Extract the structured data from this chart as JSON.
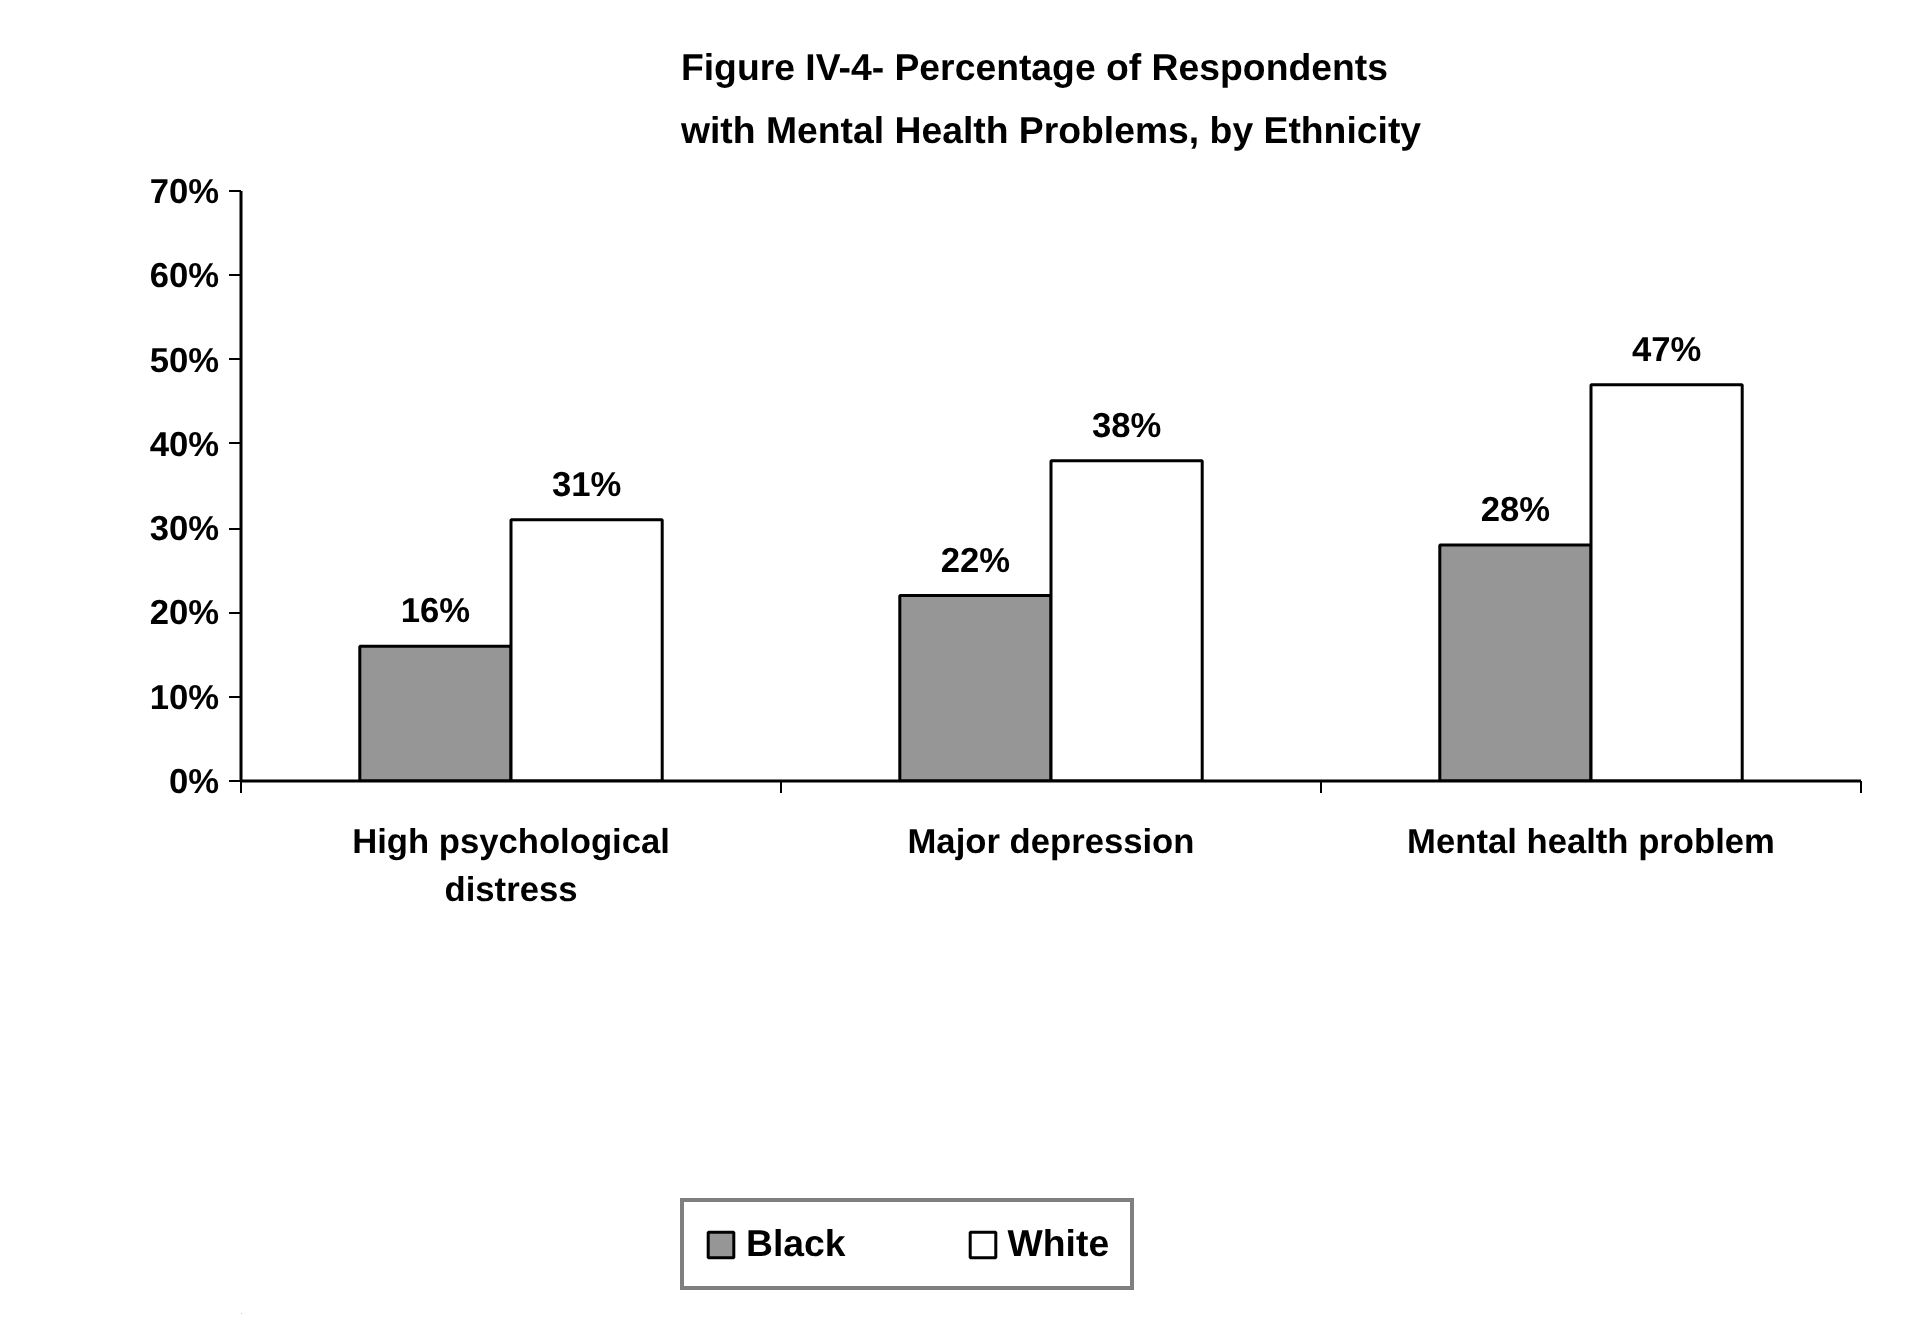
{
  "chart_data": {
    "type": "bar",
    "title": "Figure IV-4- Percentage of Respondents with Mental Health Problems, by Ethnicity",
    "categories": [
      "High psychological distress",
      "Major depression",
      "Mental health problem"
    ],
    "series": [
      {
        "name": "Black",
        "color": "#969696",
        "values": [
          16,
          22,
          28
        ],
        "value_labels": [
          "16%",
          "22%",
          "28%"
        ]
      },
      {
        "name": "White",
        "color": "#ffffff",
        "values": [
          31,
          38,
          47
        ],
        "value_labels": [
          "31%",
          "38%",
          "47%"
        ]
      }
    ],
    "ylim": [
      0,
      70
    ],
    "yticks": [
      {
        "value": 0,
        "label": "0%"
      },
      {
        "value": 10,
        "label": "10%"
      },
      {
        "value": 20,
        "label": "20%"
      },
      {
        "value": 30,
        "label": "30%"
      },
      {
        "value": 40,
        "label": "40%"
      },
      {
        "value": 50,
        "label": "50%"
      },
      {
        "value": 60,
        "label": "60%"
      },
      {
        "value": 70,
        "label": "70%"
      }
    ],
    "grid": false,
    "legend": "bottom"
  }
}
